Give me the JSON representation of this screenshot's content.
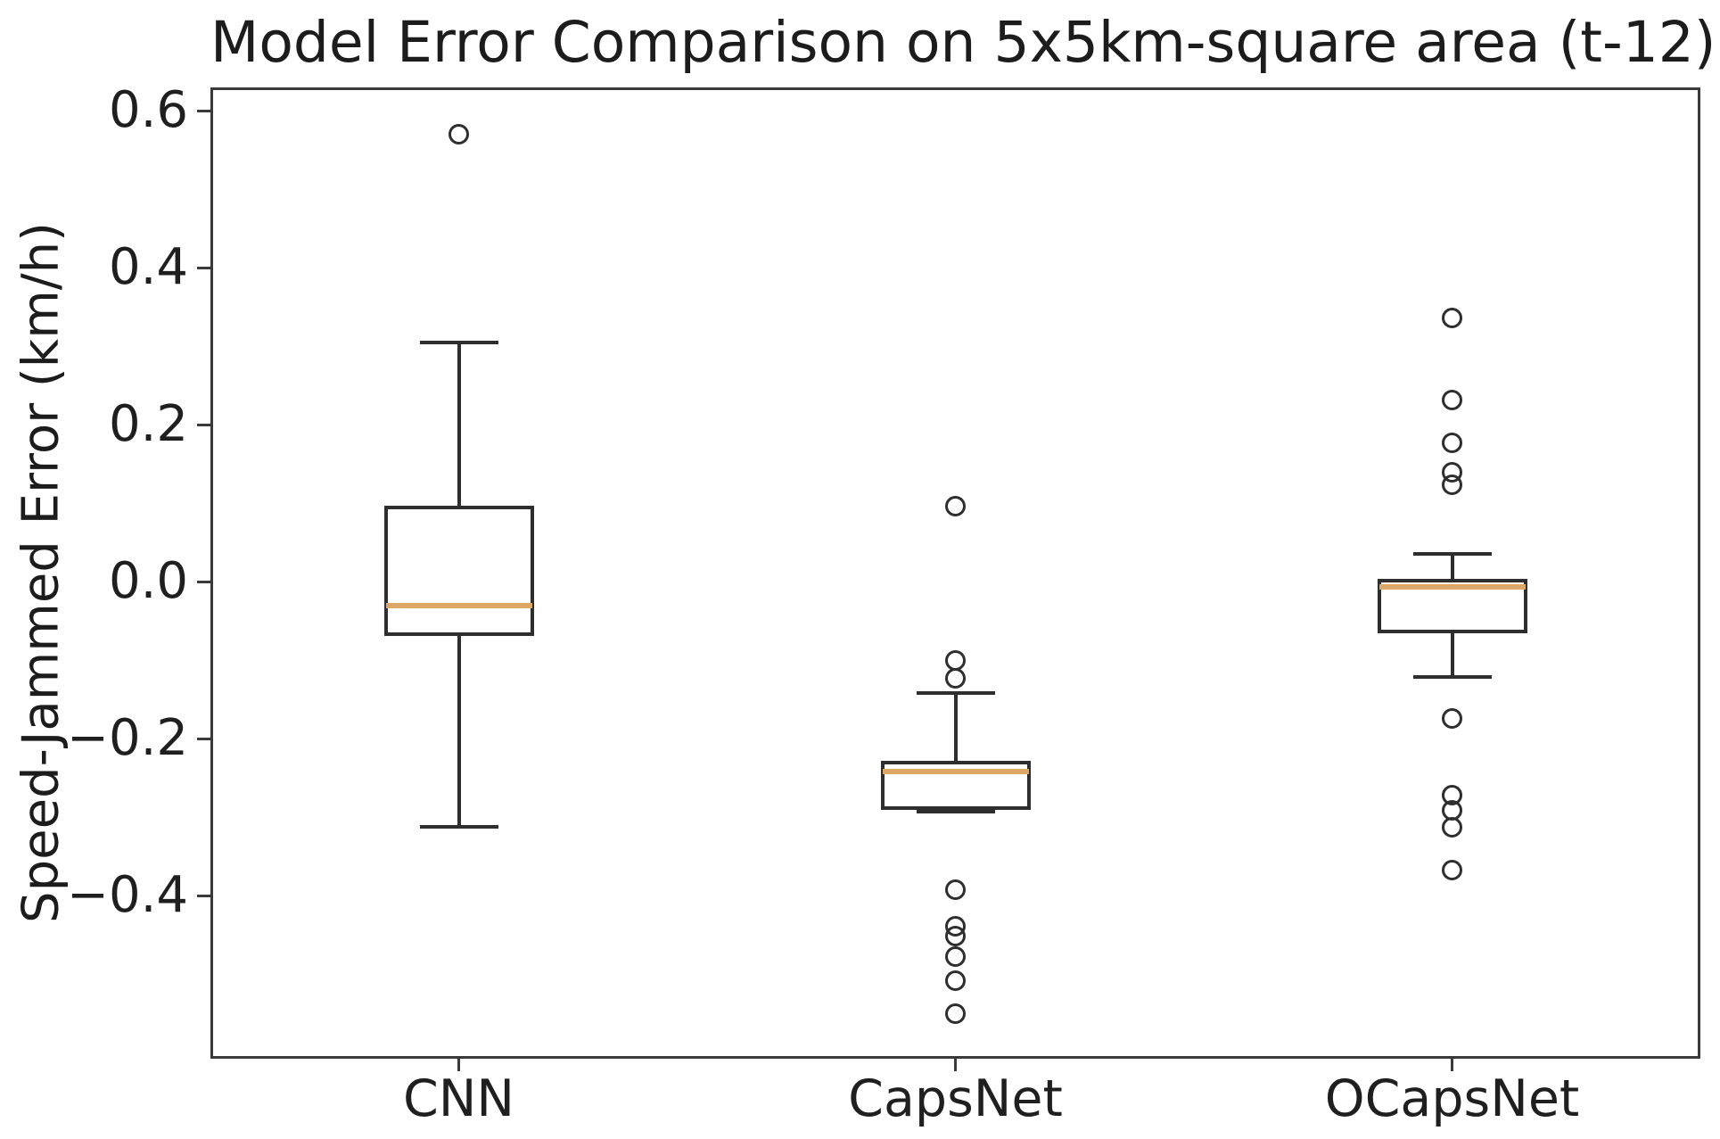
{
  "figure": {
    "title": "Model Error Comparison on 5x5km-square area (t-12)",
    "ylabel": "Speed-Jammed Error (km/h)"
  },
  "chart_data": {
    "type": "box",
    "title": "Model Error Comparison on 5x5km-square area (t-12)",
    "xlabel": "",
    "ylabel": "Speed-Jammed Error (km/h)",
    "grid": false,
    "legend": false,
    "ylim": [
      -0.608,
      0.63
    ],
    "yticks": [
      {
        "value": 0.6,
        "label": "0.6"
      },
      {
        "value": 0.4,
        "label": "0.4"
      },
      {
        "value": 0.2,
        "label": "0.2"
      },
      {
        "value": 0.0,
        "label": "0.0"
      },
      {
        "value": -0.2,
        "label": "−0.2"
      },
      {
        "value": -0.4,
        "label": "−0.4"
      }
    ],
    "categories": [
      "CNN",
      "CapsNet",
      "OCapsNet"
    ],
    "colors": {
      "box_edge": "#2e2e2e",
      "median": "#dda768",
      "frame": "#3a3a3a",
      "text": "#1d1d1d"
    },
    "series": [
      {
        "name": "CNN",
        "whisker_low": -0.312,
        "q1": -0.067,
        "median": -0.03,
        "q3": 0.095,
        "whisker_high": 0.305,
        "outliers": [
          0.57
        ]
      },
      {
        "name": "CapsNet",
        "whisker_low": -0.293,
        "q1": -0.289,
        "median": -0.242,
        "q3": -0.231,
        "whisker_high": -0.142,
        "outliers": [
          0.096,
          -0.1,
          -0.123,
          -0.393,
          -0.439,
          -0.452,
          -0.478,
          -0.509,
          -0.551
        ]
      },
      {
        "name": "OCapsNet",
        "whisker_low": -0.122,
        "q1": -0.064,
        "median": -0.007,
        "q3": 0.001,
        "whisker_high": 0.036,
        "outliers": [
          0.336,
          0.231,
          0.177,
          0.14,
          0.123,
          -0.174,
          -0.272,
          -0.291,
          -0.313,
          -0.367
        ]
      }
    ]
  }
}
